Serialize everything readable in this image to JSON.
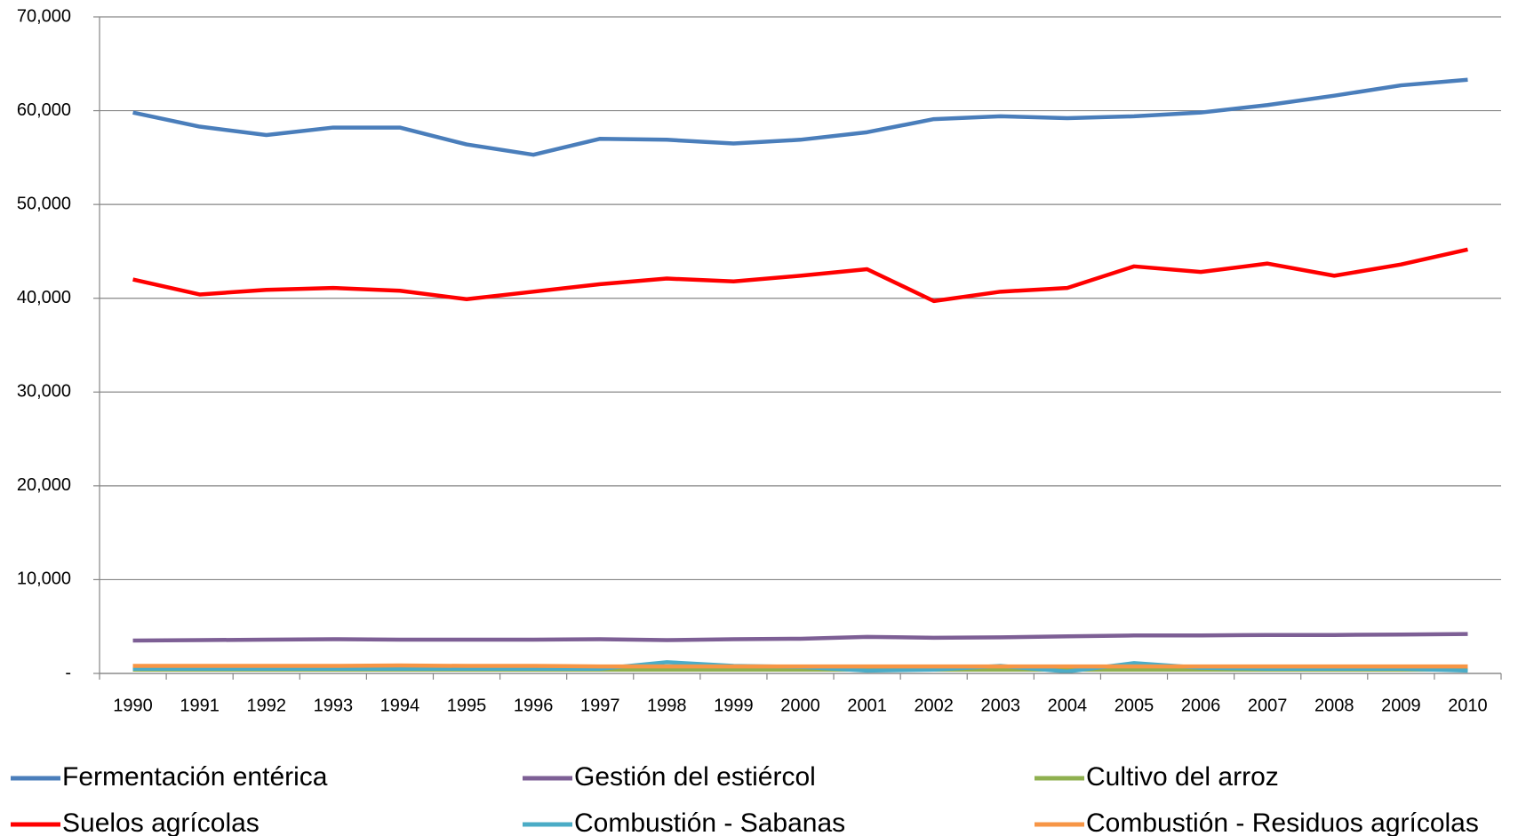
{
  "chart_data": {
    "type": "line",
    "categories": [
      "1990",
      "1991",
      "1992",
      "1993",
      "1994",
      "1995",
      "1996",
      "1997",
      "1998",
      "1999",
      "2000",
      "2001",
      "2002",
      "2003",
      "2004",
      "2005",
      "2006",
      "2007",
      "2008",
      "2009",
      "2010"
    ],
    "series": [
      {
        "name": "Fermentación entérica",
        "color": "#4a7ebb",
        "values": [
          59800,
          58300,
          57400,
          58200,
          58200,
          56400,
          55300,
          57000,
          56900,
          56500,
          56900,
          57700,
          59100,
          59400,
          59200,
          59400,
          59800,
          60600,
          61600,
          62700,
          63300
        ]
      },
      {
        "name": "Gestión del estiércol",
        "color": "#7d5f95",
        "values": [
          3500,
          3550,
          3600,
          3650,
          3600,
          3600,
          3600,
          3650,
          3550,
          3650,
          3700,
          3900,
          3800,
          3850,
          3950,
          4050,
          4050,
          4100,
          4100,
          4150,
          4200
        ]
      },
      {
        "name": "Cultivo del arroz",
        "color": "#8fb04f",
        "values": [
          400,
          400,
          400,
          400,
          400,
          400,
          400,
          400,
          400,
          400,
          400,
          400,
          400,
          400,
          400,
          400,
          400,
          400,
          400,
          400,
          400
        ]
      },
      {
        "name": "Suelos agrícolas",
        "color": "#ff0000",
        "values": [
          42000,
          40400,
          40900,
          41100,
          40800,
          39900,
          40700,
          41500,
          42100,
          41800,
          42400,
          43100,
          39700,
          40700,
          41100,
          43400,
          42800,
          43700,
          42400,
          43600,
          45200
        ]
      },
      {
        "name": "Combustión - Sabanas",
        "color": "#4bacc6",
        "values": [
          500,
          500,
          500,
          500,
          500,
          500,
          500,
          500,
          1200,
          800,
          700,
          300,
          400,
          800,
          200,
          1100,
          600,
          500,
          500,
          500,
          300
        ]
      },
      {
        "name": "Combustión - Residuos agrícolas",
        "color": "#f79646",
        "values": [
          800,
          800,
          800,
          800,
          850,
          800,
          800,
          750,
          750,
          750,
          750,
          750,
          750,
          750,
          750,
          750,
          750,
          750,
          750,
          750,
          750
        ]
      }
    ],
    "ylim": [
      0,
      70000
    ],
    "yticks": [
      {
        "value": 0,
        "label": "-"
      },
      {
        "value": 10000,
        "label": "10,000"
      },
      {
        "value": 20000,
        "label": "20,000"
      },
      {
        "value": 30000,
        "label": "30,000"
      },
      {
        "value": 40000,
        "label": "40,000"
      },
      {
        "value": 50000,
        "label": "50,000"
      },
      {
        "value": 60000,
        "label": "60,000"
      },
      {
        "value": 70000,
        "label": "70,000"
      }
    ],
    "grid": true
  }
}
